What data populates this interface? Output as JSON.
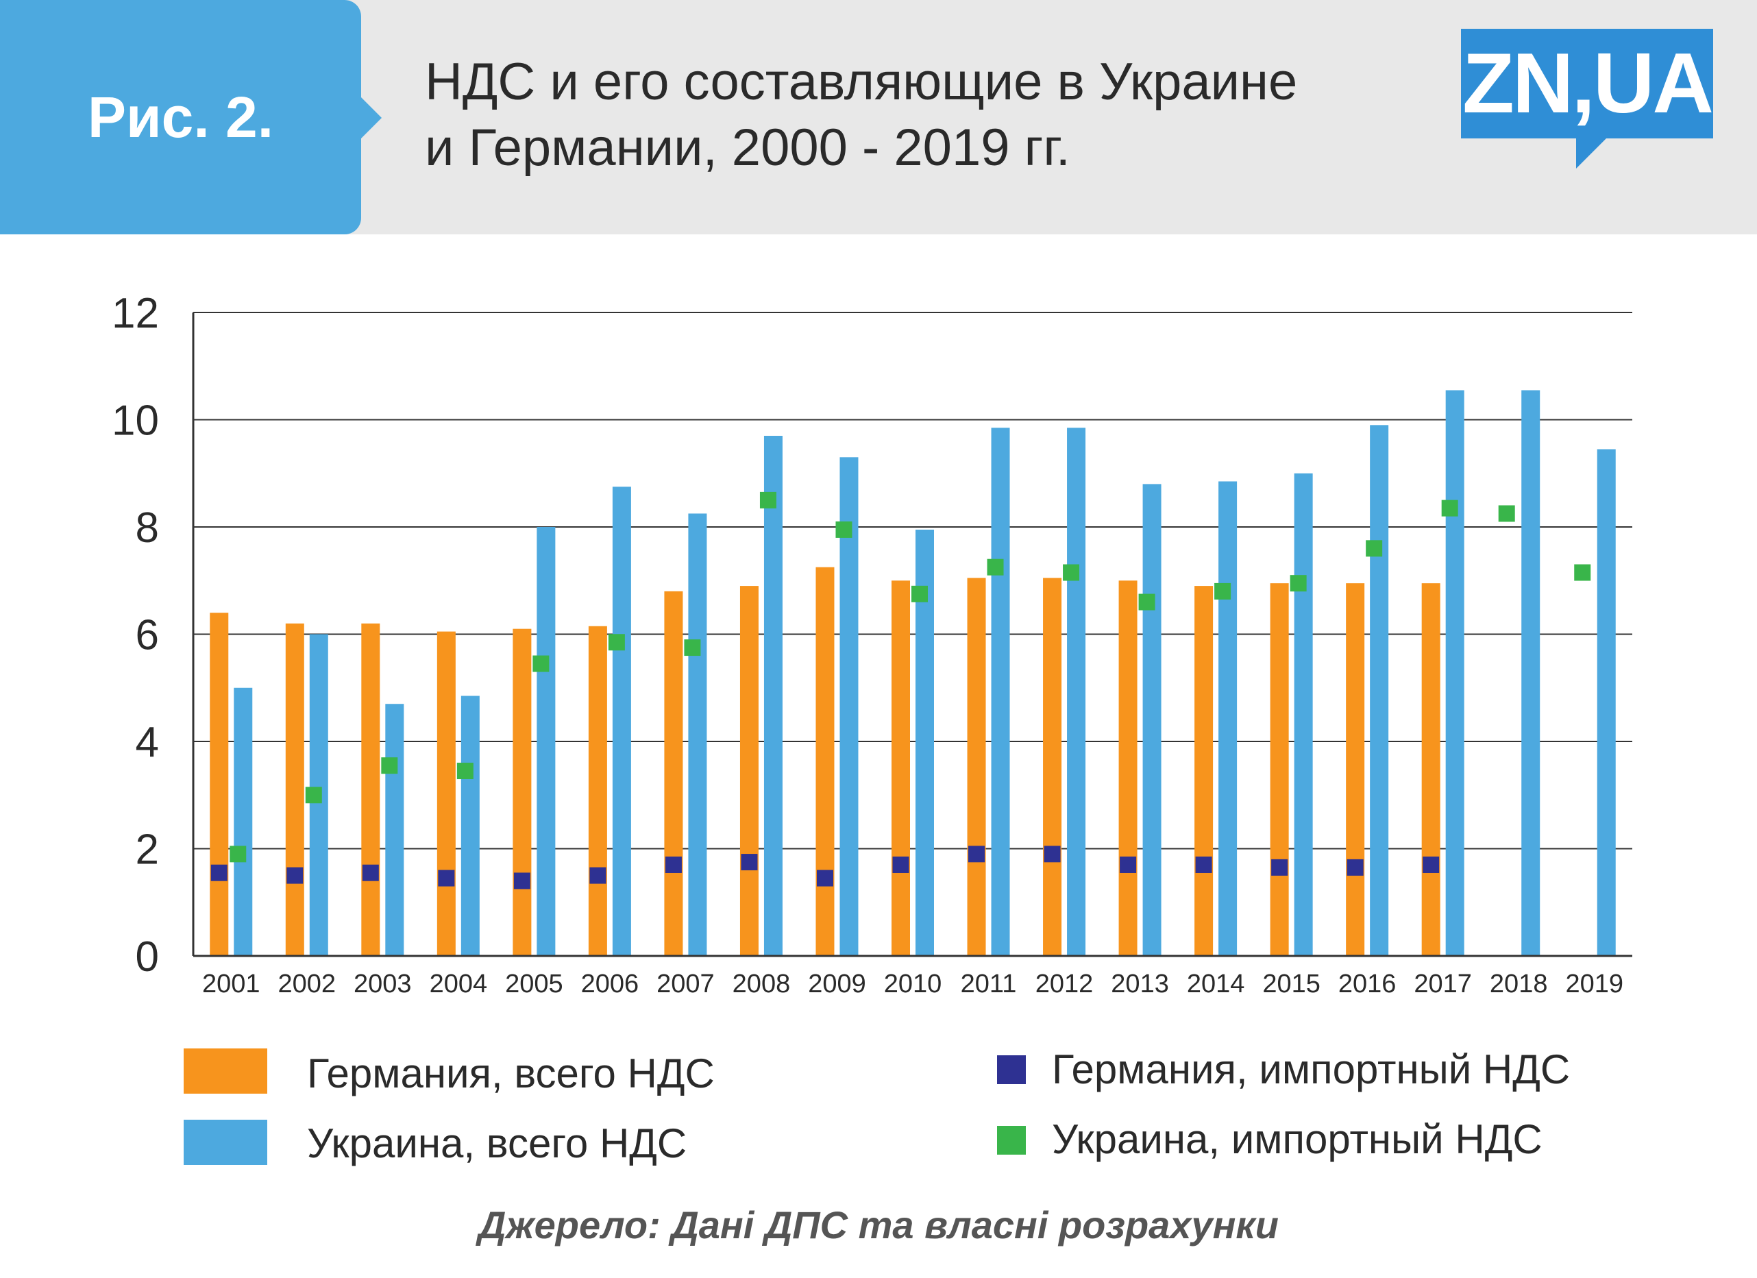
{
  "header": {
    "figure_label": "Рис. 2.",
    "title_line1": "НДС и его составляющие в Украине",
    "title_line2": "и Германии, 2000 - 2019 гг.",
    "logo_text": "ZN,UA"
  },
  "colors": {
    "germany_total": "#f7941d",
    "ukraine_total": "#4da9df",
    "germany_import": "#2e3192",
    "ukraine_import": "#39b54a",
    "grid": "#333333"
  },
  "chart_data": {
    "type": "bar",
    "title": "НДС и его составляющие в Украине и Германии, 2000 - 2019 гг.",
    "categories": [
      "2001",
      "2002",
      "2003",
      "2004",
      "2005",
      "2006",
      "2007",
      "2008",
      "2009",
      "2010",
      "2011",
      "2012",
      "2013",
      "2014",
      "2015",
      "2016",
      "2017",
      "2018",
      "2019"
    ],
    "ylim": [
      0,
      12
    ],
    "yticks": [
      0,
      2,
      4,
      6,
      8,
      10,
      12
    ],
    "grid": true,
    "legend_position": "bottom",
    "series": [
      {
        "name": "Германия, всего НДС",
        "kind": "bar",
        "values": [
          6.4,
          6.2,
          6.2,
          6.05,
          6.1,
          6.15,
          6.8,
          6.9,
          7.25,
          7.0,
          7.05,
          7.05,
          7.0,
          6.9,
          6.95,
          6.95,
          6.95,
          null,
          null
        ]
      },
      {
        "name": "Украина, всего НДС",
        "kind": "bar",
        "values": [
          5.0,
          6.0,
          4.7,
          4.85,
          8.0,
          8.75,
          8.25,
          9.7,
          9.3,
          7.95,
          9.85,
          9.85,
          8.8,
          8.85,
          9.0,
          9.9,
          10.55,
          10.55,
          9.45
        ]
      },
      {
        "name": "Германия, импортный НДС",
        "kind": "marker",
        "values": [
          1.55,
          1.5,
          1.55,
          1.45,
          1.4,
          1.5,
          1.7,
          1.75,
          1.45,
          1.7,
          1.9,
          1.9,
          1.7,
          1.7,
          1.65,
          1.65,
          1.7,
          null,
          null
        ]
      },
      {
        "name": "Украина, импортный НДС",
        "kind": "marker",
        "values": [
          1.9,
          3.0,
          3.55,
          3.45,
          5.45,
          5.85,
          5.75,
          8.5,
          7.95,
          6.75,
          7.25,
          7.15,
          6.6,
          6.8,
          6.95,
          7.6,
          8.35,
          8.25,
          7.15
        ]
      }
    ]
  },
  "legend": {
    "items": [
      {
        "label": "Германия, всего НДС"
      },
      {
        "label": "Украина, всего НДС"
      },
      {
        "label": "Германия, импортный НДС"
      },
      {
        "label": "Украина, импортный НДС"
      }
    ]
  },
  "source": "Джерело: Дані ДПС та власні розрахунки"
}
